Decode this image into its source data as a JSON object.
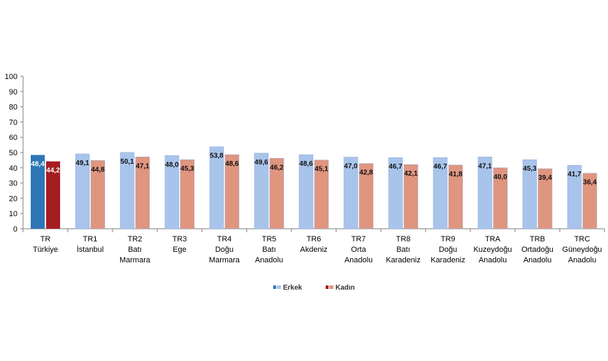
{
  "chart_data": {
    "type": "bar",
    "ylim": [
      0,
      100
    ],
    "yticks": [
      0,
      10,
      20,
      30,
      40,
      50,
      60,
      70,
      80,
      90,
      100
    ],
    "categories": [
      [
        "TR",
        "Türkiye"
      ],
      [
        "TR1",
        "İstanbul"
      ],
      [
        "TR2",
        "Batı",
        "Marmara"
      ],
      [
        "TR3",
        "Ege"
      ],
      [
        "TR4",
        "Doğu",
        "Marmara"
      ],
      [
        "TR5",
        "Batı",
        "Anadolu"
      ],
      [
        "TR6",
        "Akdeniz"
      ],
      [
        "TR7",
        "Orta",
        "Anadolu"
      ],
      [
        "TR8",
        "Batı",
        "Karadeniz"
      ],
      [
        "TR9",
        "Doğu",
        "Karadeniz"
      ],
      [
        "TRA",
        "Kuzeydoğu",
        "Anadolu"
      ],
      [
        "TRB",
        "Ortadoğu",
        "Anadolu"
      ],
      [
        "TRC",
        "Güneydoğu",
        "Anadolu"
      ]
    ],
    "series": [
      {
        "name": "Erkek",
        "values": [
          48.4,
          49.1,
          50.1,
          48.0,
          53.8,
          49.6,
          48.6,
          47.0,
          46.7,
          46.7,
          47.1,
          45.3,
          41.7
        ],
        "labels": [
          "48,4",
          "49,1",
          "50,1",
          "48,0",
          "53,8",
          "49,6",
          "48,6",
          "47,0",
          "46,7",
          "46,7",
          "47,1",
          "45,3",
          "41,7"
        ],
        "color": "#a9c4eb",
        "highlight_color": "#2e75b6",
        "legend_color": "#2e75b6"
      },
      {
        "name": "Kadın",
        "values": [
          44.2,
          44.8,
          47.1,
          45.3,
          48.6,
          46.2,
          45.1,
          42.8,
          42.1,
          41.8,
          40.0,
          39.4,
          36.4
        ],
        "labels": [
          "44,2",
          "44,8",
          "47,1",
          "45,3",
          "48,6",
          "46,2",
          "45,1",
          "42,8",
          "42,1",
          "41,8",
          "40,0",
          "39,4",
          "36,4"
        ],
        "color": "#e0957f",
        "highlight_color": "#a51d21",
        "legend_color": "#a51d21"
      }
    ],
    "highlight_category_index": 0,
    "legend_position": "bottom-center"
  }
}
